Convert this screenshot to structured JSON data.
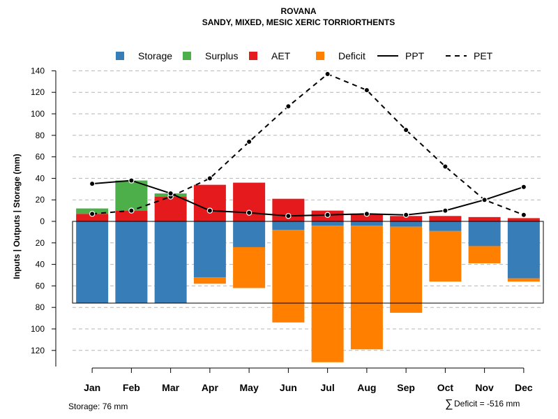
{
  "chart_data": {
    "type": "bar",
    "title": "ROVANA",
    "subtitle": "SANDY, MIXED, MESIC XERIC TORRIORTHENTS",
    "ylabel": "Inputs | Outputs | Storage    (mm)",
    "ylim": [
      -135,
      140
    ],
    "y_ticks": [
      140,
      120,
      100,
      80,
      60,
      40,
      20,
      0,
      -20,
      -40,
      -60,
      -80,
      -100,
      -120
    ],
    "y_tick_labels": [
      "140",
      "120",
      "100",
      "80",
      "60",
      "40",
      "20",
      "0",
      "20",
      "40",
      "60",
      "80",
      "100",
      "120"
    ],
    "grid": true,
    "legend_position": "top",
    "categories": [
      "Jan",
      "Feb",
      "Mar",
      "Apr",
      "May",
      "Jun",
      "Jul",
      "Aug",
      "Sep",
      "Oct",
      "Nov",
      "Dec"
    ],
    "series": [
      {
        "name": "Storage",
        "type": "bar",
        "color": "#377eb8",
        "values": [
          -76,
          -76,
          -76,
          -52,
          -24,
          -8,
          -4,
          -4,
          -5,
          -9,
          -23,
          -53
        ]
      },
      {
        "name": "Surplus",
        "type": "bar",
        "color": "#4daf4a",
        "values": [
          5,
          28,
          3,
          0,
          0,
          0,
          0,
          0,
          0,
          0,
          0,
          0
        ]
      },
      {
        "name": "AET",
        "type": "bar",
        "color": "#e41a1c",
        "values": [
          7,
          10,
          23,
          34,
          36,
          21,
          10,
          7,
          5,
          5,
          4,
          3
        ]
      },
      {
        "name": "Deficit",
        "type": "bar",
        "color": "#ff7f00",
        "values": [
          0,
          0,
          0,
          -6,
          -38,
          -86,
          -127,
          -115,
          -80,
          -47,
          -16,
          -3
        ]
      },
      {
        "name": "PPT",
        "type": "line",
        "color": "#000000",
        "style": "solid",
        "values": [
          35,
          38,
          26,
          10,
          8,
          5,
          6,
          7,
          6,
          10,
          20,
          32
        ]
      },
      {
        "name": "PET",
        "type": "line",
        "color": "#000000",
        "style": "dashed",
        "values": [
          7,
          10,
          23,
          40,
          74,
          107,
          137,
          122,
          85,
          51,
          20,
          6
        ]
      }
    ],
    "storage_capacity": 76,
    "storage_text": "Storage: 76 mm",
    "deficit_text": "Deficit = -516 mm",
    "deficit_symbol": "∑"
  }
}
